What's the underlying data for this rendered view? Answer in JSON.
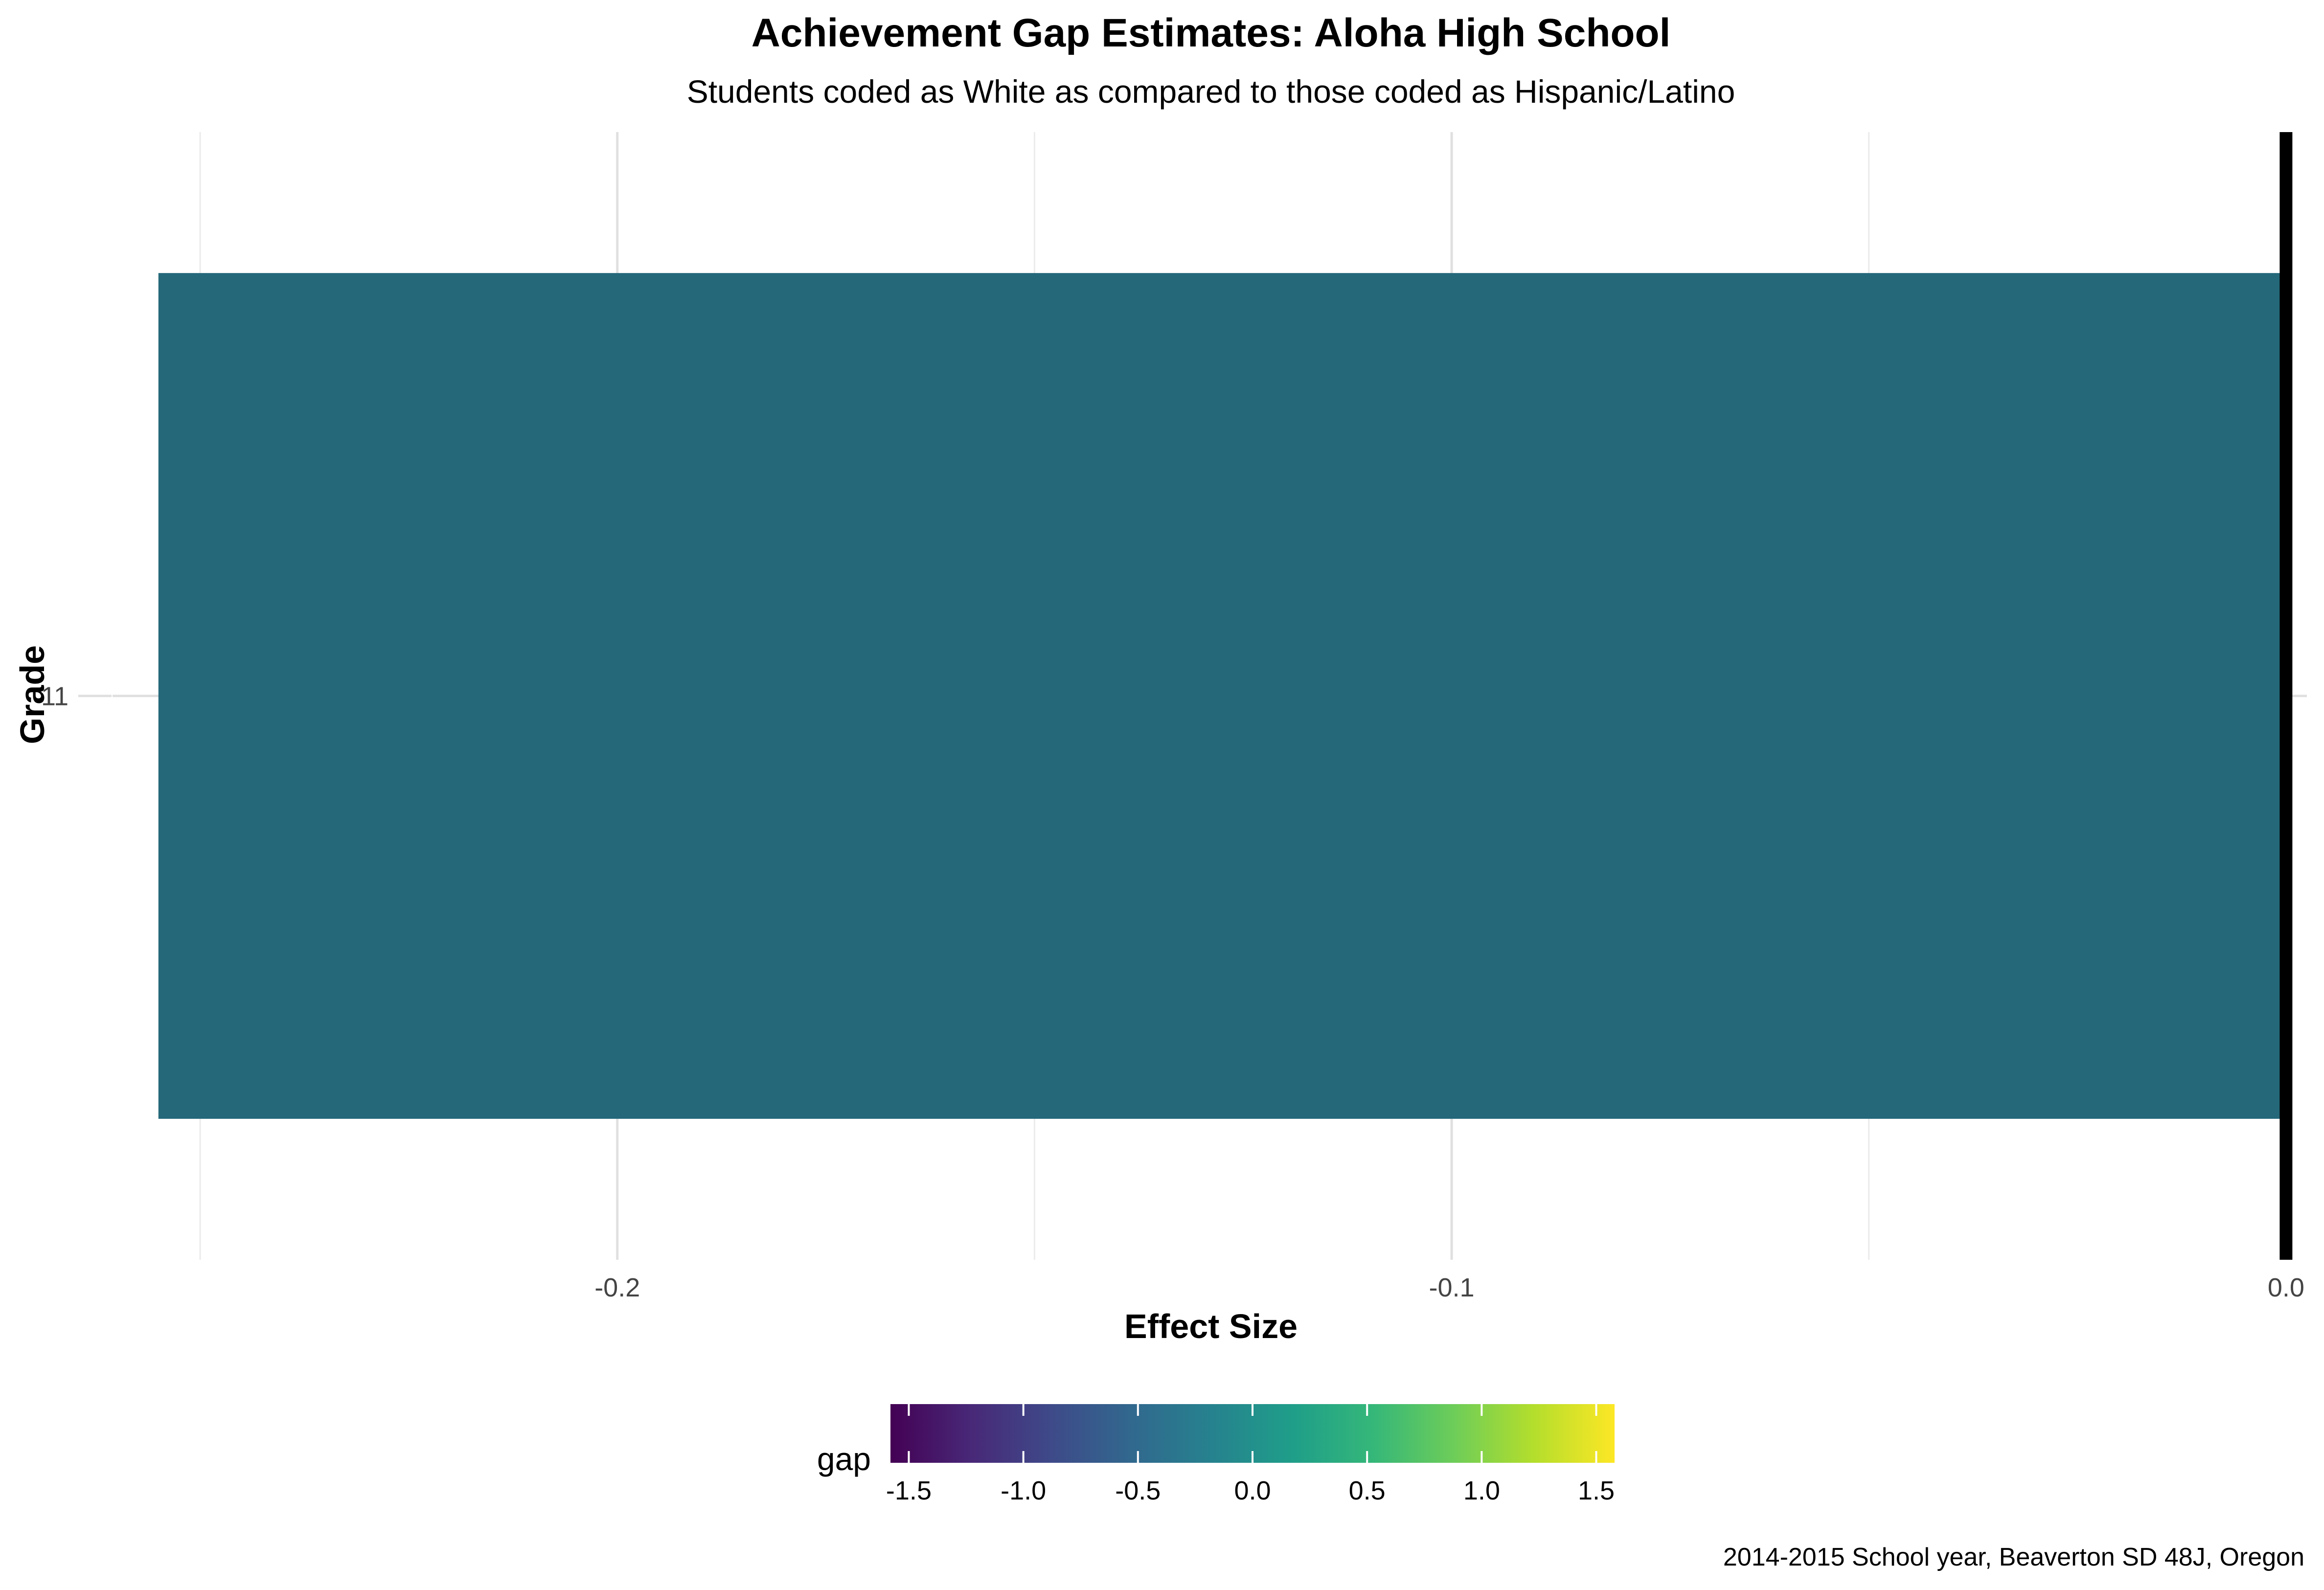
{
  "chart_data": {
    "type": "bar",
    "orientation": "horizontal",
    "title": "Achievement Gap Estimates: Aloha High School",
    "subtitle": "Students coded as White as compared to those coded as Hispanic/Latino",
    "xlabel": "Effect Size",
    "ylabel": "Grade",
    "caption": "2014-2015 School year, Beaverton SD 48J, Oregon",
    "categories": [
      "11"
    ],
    "values": [
      -0.255
    ],
    "xlim": [
      -0.2605,
      0.0
    ],
    "x_ticks": [
      -0.2,
      -0.1,
      0.0
    ],
    "x_tick_labels": [
      "-0.2",
      "-0.1",
      "0.0"
    ],
    "reference_line": 0.0,
    "grid": true,
    "bar_color": "#24687A",
    "legend": {
      "title": "gap",
      "position": "bottom",
      "type": "colorbar",
      "range": [
        -1.58,
        1.58
      ],
      "ticks": [
        -1.5,
        -1.0,
        -0.5,
        0.0,
        0.5,
        1.0,
        1.5
      ],
      "tick_labels": [
        "-1.5",
        "-1.0",
        "-0.5",
        "0.0",
        "0.5",
        "1.0",
        "1.5"
      ],
      "colors": [
        "#440154",
        "#482878",
        "#3E4A89",
        "#31688E",
        "#26828E",
        "#1F9E89",
        "#35B779",
        "#6DCD59",
        "#B4DE2C",
        "#FDE725"
      ]
    }
  }
}
